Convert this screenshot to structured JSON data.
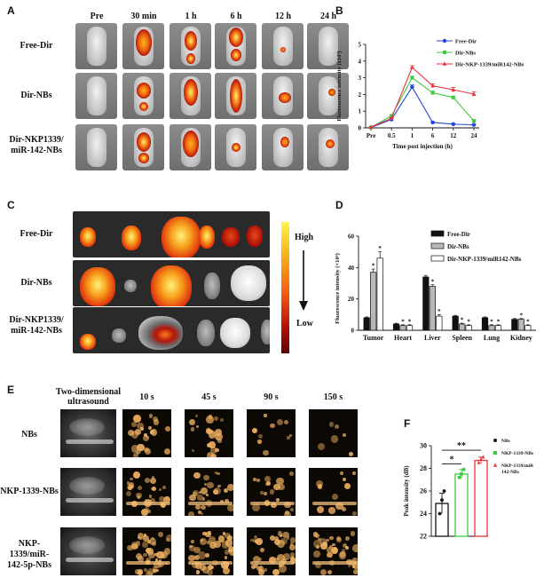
{
  "panel_letters": [
    "A",
    "B",
    "C",
    "D",
    "E",
    "F"
  ],
  "panel_a": {
    "timepoints": [
      "Pre",
      "30 min",
      "1 h",
      "6 h",
      "12 h",
      "24 h"
    ],
    "rows": [
      "Free-Dir",
      "Dir-NBs",
      "Dir-NKP1339/\nmiR-142-NBs"
    ]
  },
  "panel_c": {
    "rows": [
      "Free-Dir",
      "Dir-NBs",
      "Dir-NKP1339/\nmiR-142-NBs"
    ],
    "scale_high": "High",
    "scale_low": "Low",
    "colors": {
      "high": "#fff44a",
      "mid": "#f07c16",
      "low": "#7a0000"
    }
  },
  "panel_e": {
    "columns": [
      "Two-dimensional\nultrasound",
      "10 s",
      "45 s",
      "90 s",
      "150 s"
    ],
    "rows": [
      "NBs",
      "NKP-1339-NBs",
      "NKP-1339/miR-\n142-5p-NBs"
    ]
  },
  "chart_data": [
    {
      "id": "B",
      "type": "line",
      "xlabel": "Time post injection (h)",
      "ylabel": "Fluorescence intensity (x10⁷)",
      "categories": [
        "Pre",
        "0.5",
        "1",
        "6",
        "12",
        "24"
      ],
      "ylim": [
        0,
        5
      ],
      "yticks": [
        "0",
        "1",
        "2",
        "3",
        "4",
        "5"
      ],
      "legend_position": "top-right",
      "series": [
        {
          "name": "Free-Dir",
          "color": "#2546d6",
          "marker": "circle",
          "values": [
            0.02,
            0.5,
            2.45,
            0.32,
            0.22,
            0.18
          ],
          "errors": [
            0.02,
            0.1,
            0.12,
            0.05,
            0.05,
            0.04
          ]
        },
        {
          "name": "Dir-NBs",
          "color": "#3ec83e",
          "marker": "square",
          "values": [
            0.03,
            0.72,
            3.0,
            2.1,
            1.82,
            0.42
          ],
          "errors": [
            0.02,
            0.08,
            0.1,
            0.1,
            0.08,
            0.06
          ]
        },
        {
          "name": "Dir-NKP-1339/miR142-NBs",
          "color": "#e8343a",
          "marker": "triangle",
          "values": [
            0.05,
            0.58,
            3.62,
            2.52,
            2.28,
            2.02
          ],
          "errors": [
            0.02,
            0.06,
            0.1,
            0.12,
            0.14,
            0.14
          ]
        }
      ]
    },
    {
      "id": "D",
      "type": "bar",
      "ylabel": "Fluorescence intensity (×10⁶)",
      "categories": [
        "Tumor",
        "Heart",
        "Liver",
        "Spleen",
        "Lung",
        "Kidney"
      ],
      "ylim": [
        0,
        60
      ],
      "yticks": [
        "0",
        "20",
        "40",
        "60"
      ],
      "legend_position": "top-right",
      "series": [
        {
          "name": "Free-Dir",
          "fill": "#111111",
          "values": [
            8,
            4,
            34,
            9,
            8,
            7
          ],
          "errors": [
            0.5,
            0.5,
            1,
            0.5,
            0.5,
            0.5
          ]
        },
        {
          "name": "Dir-NBs",
          "fill": "#b8b8b8",
          "values": [
            37,
            3,
            28,
            4,
            3,
            7
          ],
          "errors": [
            2,
            0.5,
            1,
            0.5,
            0.5,
            0.5
          ]
        },
        {
          "name": "Dir-NKP-1339/miR142-NBs",
          "fill": "#ffffff",
          "values": [
            46,
            3,
            9,
            3,
            3,
            3
          ],
          "errors": [
            4,
            0.5,
            1,
            0.5,
            0.5,
            0.5
          ]
        }
      ],
      "star_label": "*"
    },
    {
      "id": "F",
      "type": "bar",
      "ylabel": "Peak intensity (dB)",
      "categories": [
        "NBs",
        "NKP-1339-NBs",
        "NKP-1339/miR-142-NBs"
      ],
      "ylim": [
        22,
        30
      ],
      "yticks": [
        "22",
        "24",
        "26",
        "28",
        "30"
      ],
      "values": [
        24.9,
        27.5,
        28.7
      ],
      "errors": [
        0.9,
        0.4,
        0.3
      ],
      "points": [
        [
          24.0,
          25.2,
          26.0
        ],
        [
          27.2,
          27.5,
          27.9
        ],
        [
          28.5,
          28.8,
          29.0
        ]
      ],
      "colors": [
        "#111111",
        "#3ec83e",
        "#e8343a"
      ],
      "legend": [
        "NBs",
        "NKP-1339-NBs",
        "NKP-1339/miR\n142-NBs"
      ],
      "significance": [
        "*",
        "**"
      ]
    }
  ]
}
